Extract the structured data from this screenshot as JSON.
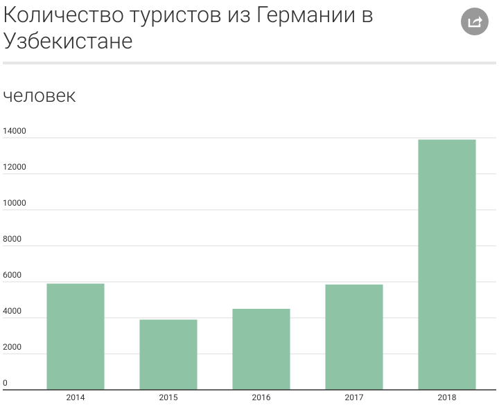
{
  "chart_data": {
    "type": "bar",
    "title": "Количество туристов из Германии в Узбекистане",
    "subtitle": "человек",
    "categories": [
      "2014",
      "2015",
      "2016",
      "2017",
      "2018"
    ],
    "values": [
      5900,
      3900,
      4500,
      5850,
      13900
    ],
    "color": "#8fc3a6",
    "ylim": [
      0,
      14000
    ],
    "yticks": [
      0,
      2000,
      4000,
      6000,
      8000,
      10000,
      12000,
      14000
    ],
    "grid": true
  }
}
